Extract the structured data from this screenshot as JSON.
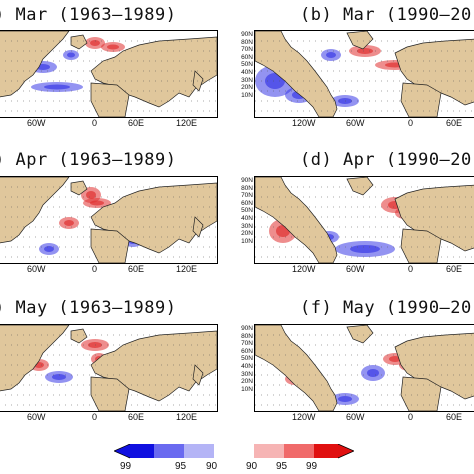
{
  "panels": [
    {
      "id": "a",
      "title": ") Mar (1963–1989)"
    },
    {
      "id": "b",
      "title": "(b) Mar (1990–20"
    },
    {
      "id": "c",
      "title": ") Apr (1963–1989)"
    },
    {
      "id": "d",
      "title": "(d) Apr (1990–20"
    },
    {
      "id": "e",
      "title": ") May (1963–1989)"
    },
    {
      "id": "f",
      "title": "(f) May (1990–20"
    }
  ],
  "left_lon_labels": [
    "60W",
    "0",
    "60E",
    "120E"
  ],
  "right_lon_labels": [
    "120W",
    "60W",
    "0",
    "60E"
  ],
  "lat_labels": [
    "90N",
    "80N",
    "70N",
    "60N",
    "50N",
    "40N",
    "30N",
    "20N",
    "10N"
  ],
  "colorbar": {
    "negative_labels": [
      "99",
      "95",
      "90"
    ],
    "positive_labels": [
      "90",
      "95",
      "99"
    ],
    "negative_colors": [
      "#1010e0",
      "#6a6af0",
      "#b4b4f6"
    ],
    "positive_colors": [
      "#f6b4b4",
      "#f06a6a",
      "#e01010"
    ]
  },
  "colors": {
    "land": "#e0c79c",
    "ocean": "#ffffff",
    "positive": "#e03030",
    "negative": "#3a3ae6"
  }
}
